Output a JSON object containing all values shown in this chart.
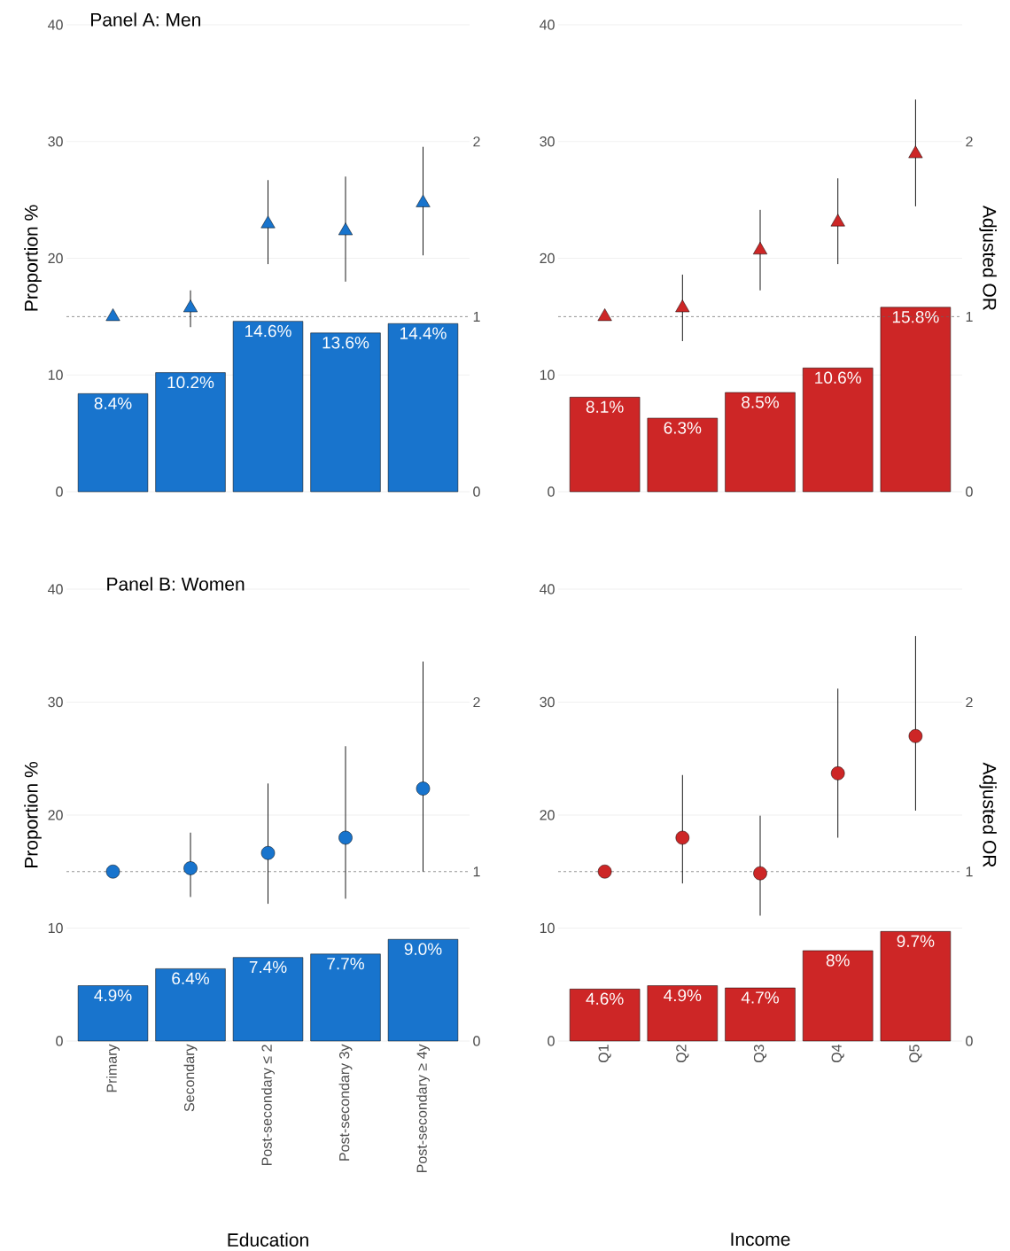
{
  "chart_data": [
    {
      "type": "bar",
      "title": "Panel A: Men",
      "ylabel": "Proportion %",
      "categories": [
        null,
        null,
        null,
        null,
        null
      ],
      "tick_labels": "y",
      "ylim": [
        0,
        40
      ],
      "yticks": [
        0,
        10,
        20,
        30,
        40
      ],
      "y2lim": [
        0,
        2.667
      ],
      "y2ticks": [
        0,
        1,
        2
      ],
      "grid": "y",
      "ref_lines": [
        {
          "axis": "y2",
          "value": 1,
          "line_style": "dashed"
        }
      ],
      "series": [
        {
          "type": "bar",
          "color": "#1874cd",
          "values": [
            8.4,
            10.2,
            14.6,
            13.6,
            14.4
          ],
          "value_labels": [
            "8.4%",
            "10.2%",
            "14.6%",
            "13.6%",
            "14.4%"
          ]
        },
        {
          "type": "scatter",
          "axis": "y2",
          "marker": "triangle",
          "color": "#1874cd",
          "values": [
            1.0,
            1.05,
            1.53,
            1.49,
            1.65
          ],
          "errors": [
            null,
            [
              0.94,
              1.15
            ],
            [
              1.3,
              1.78
            ],
            [
              1.2,
              1.8
            ],
            [
              1.35,
              1.97
            ]
          ]
        }
      ]
    },
    {
      "type": "bar",
      "y2label": "Adjusted OR",
      "categories": [
        null,
        null,
        null,
        null,
        null
      ],
      "tick_labels": "y",
      "ylim": [
        0,
        40
      ],
      "yticks": [
        0,
        10,
        20,
        30,
        40
      ],
      "y2lim": [
        0,
        2.667
      ],
      "y2ticks": [
        0,
        1,
        2
      ],
      "grid": "y",
      "ref_lines": [
        {
          "axis": "y2",
          "value": 1,
          "line_style": "dashed"
        }
      ],
      "series": [
        {
          "type": "bar",
          "color": "#cd2626",
          "values": [
            8.1,
            6.3,
            8.5,
            10.6,
            15.8
          ],
          "value_labels": [
            "8.1%",
            "6.3%",
            "8.5%",
            "10.6%",
            "15.8%"
          ]
        },
        {
          "type": "scatter",
          "axis": "y2",
          "marker": "triangle",
          "color": "#cd2626",
          "values": [
            1.0,
            1.05,
            1.38,
            1.54,
            1.93
          ],
          "errors": [
            null,
            [
              0.86,
              1.24
            ],
            [
              1.15,
              1.61
            ],
            [
              1.3,
              1.79
            ],
            [
              1.63,
              2.24
            ]
          ]
        }
      ]
    },
    {
      "type": "bar",
      "title": "Panel B: Women",
      "ylabel": "Proportion %",
      "xlabel": "Education",
      "categories": [
        "Primary",
        "Secondary",
        "Post-secondary ≤ 2",
        "Post-secondary 3y",
        "Post-secondary ≥ 4y"
      ],
      "ylim": [
        0,
        40
      ],
      "yticks": [
        0,
        10,
        20,
        30,
        40
      ],
      "y2lim": [
        0,
        2.667
      ],
      "y2ticks": [
        0,
        1,
        2
      ],
      "grid": "y",
      "ref_lines": [
        {
          "axis": "y2",
          "value": 1,
          "line_style": "dashed"
        }
      ],
      "series": [
        {
          "type": "bar",
          "color": "#1874cd",
          "values": [
            4.9,
            6.4,
            7.4,
            7.7,
            9.0
          ],
          "value_labels": [
            "4.9%",
            "6.4%",
            "7.4%",
            "7.7%",
            "9.0%"
          ]
        },
        {
          "type": "scatter",
          "axis": "y2",
          "marker": "circle",
          "color": "#1874cd",
          "values": [
            1.0,
            1.02,
            1.11,
            1.2,
            1.49
          ],
          "errors": [
            null,
            [
              0.85,
              1.23
            ],
            [
              0.81,
              1.52
            ],
            [
              0.84,
              1.74
            ],
            [
              1.0,
              2.24
            ]
          ]
        }
      ]
    },
    {
      "type": "bar",
      "y2label": "Adjusted OR",
      "xlabel": "Income",
      "categories": [
        "Q1",
        "Q2",
        "Q3",
        "Q4",
        "Q5"
      ],
      "ylim": [
        0,
        40
      ],
      "yticks": [
        0,
        10,
        20,
        30,
        40
      ],
      "y2lim": [
        0,
        2.667
      ],
      "y2ticks": [
        0,
        1,
        2
      ],
      "grid": "y",
      "ref_lines": [
        {
          "axis": "y2",
          "value": 1,
          "line_style": "dashed"
        }
      ],
      "series": [
        {
          "type": "bar",
          "color": "#cd2626",
          "values": [
            4.6,
            4.9,
            4.7,
            8,
            9.7
          ],
          "value_labels": [
            "4.6%",
            "4.9%",
            "4.7%",
            "8%",
            "9.7%"
          ]
        },
        {
          "type": "scatter",
          "axis": "y2",
          "marker": "circle",
          "color": "#cd2626",
          "values": [
            1.0,
            1.2,
            0.99,
            1.58,
            1.8
          ],
          "errors": [
            null,
            [
              0.93,
              1.57
            ],
            [
              0.74,
              1.33
            ],
            [
              1.2,
              2.08
            ],
            [
              1.36,
              2.39
            ]
          ]
        }
      ]
    }
  ]
}
